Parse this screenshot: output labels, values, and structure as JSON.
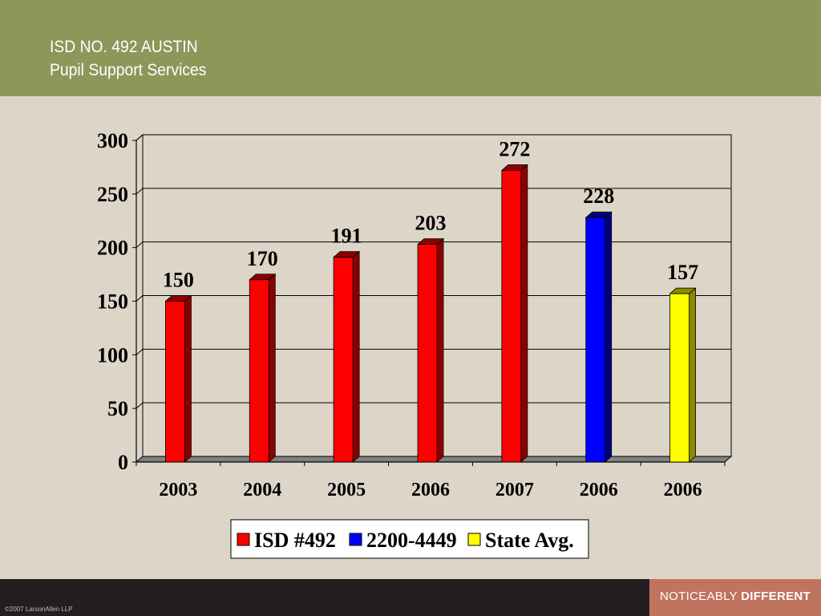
{
  "header": {
    "title_line1": "ISD NO. 492 AUSTIN",
    "title_line2": "Pupil Support Services"
  },
  "footer": {
    "copyright": "©2007 LarsonAllen LLP",
    "tagline_light": "NOTICEABLY",
    "tagline_bold": "DIFFERENT"
  },
  "colors": {
    "header_bg": "#8e9659",
    "body_bg": "#ddd5c8",
    "footer_bg": "#231f20",
    "tagline_bg": "#c0735f"
  },
  "chart_data": {
    "type": "bar",
    "categories": [
      "2003",
      "2004",
      "2005",
      "2006",
      "2007",
      "2006",
      "2006"
    ],
    "series": [
      {
        "name": "ISD #492",
        "color": "#ff0000",
        "dark": "#8b0000",
        "values": [
          150,
          170,
          191,
          203,
          272,
          null,
          null
        ]
      },
      {
        "name": "2200-4449",
        "color": "#0000ff",
        "dark": "#00007a",
        "values": [
          null,
          null,
          null,
          null,
          null,
          228,
          null
        ]
      },
      {
        "name": "State Avg.",
        "color": "#ffff00",
        "dark": "#8a8a00",
        "values": [
          null,
          null,
          null,
          null,
          null,
          null,
          157
        ]
      }
    ],
    "ylim": [
      0,
      300
    ],
    "yticks": [
      0,
      50,
      100,
      150,
      200,
      250,
      300
    ],
    "grid": true,
    "legend": "bottom",
    "data_labels": true
  }
}
